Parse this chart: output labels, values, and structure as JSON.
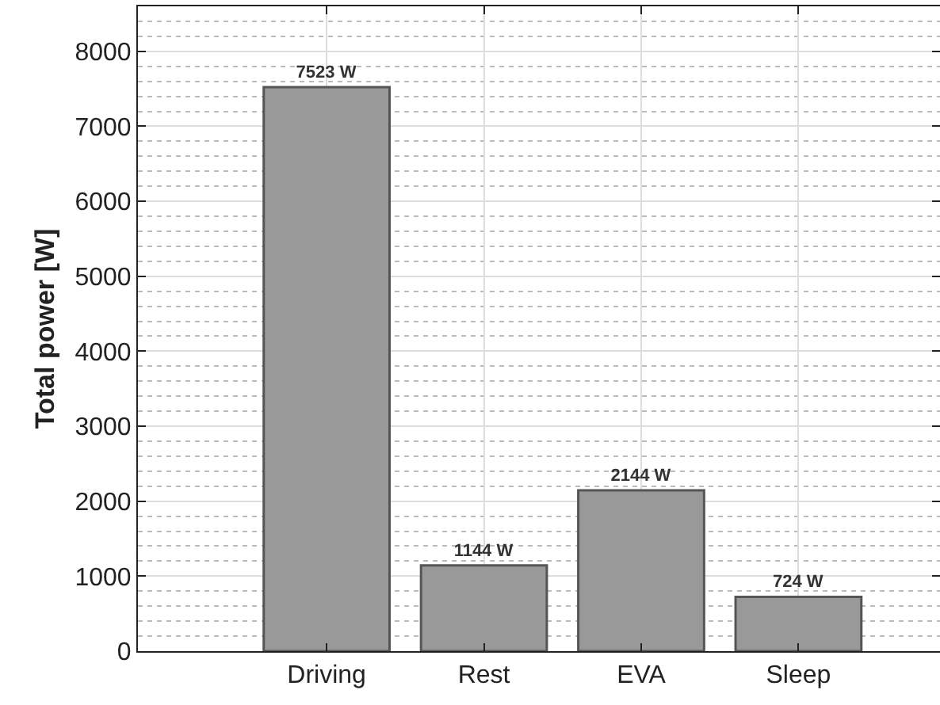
{
  "chart_data": {
    "type": "bar",
    "ylabel": "Total power [W]",
    "categories": [
      "Driving",
      "Rest",
      "EVA",
      "Sleep"
    ],
    "values": [
      7523,
      1144,
      2144,
      724
    ],
    "value_labels": [
      "7523 W",
      "1144 W",
      "2144 W",
      "724 W"
    ],
    "color": "#999999",
    "ylim": [
      0,
      8600
    ],
    "yticks": [
      0,
      {
        "value": 200,
        "label": null
      },
      {
        "value": 400,
        "label": null
      },
      {
        "value": 600,
        "label": null
      },
      {
        "value": 800,
        "label": null
      },
      1000,
      {
        "value": 1200,
        "label": null
      },
      {
        "value": 1400,
        "label": null
      },
      {
        "value": 1600,
        "label": null
      },
      {
        "value": 1800,
        "label": null
      },
      2000,
      {
        "value": 2200,
        "label": null
      },
      {
        "value": 2400,
        "label": null
      },
      {
        "value": 2600,
        "label": null
      },
      {
        "value": 2800,
        "label": null
      },
      3000,
      {
        "value": 3200,
        "label": null
      },
      {
        "value": 3400,
        "label": null
      },
      {
        "value": 3600,
        "label": null
      },
      {
        "value": 3800,
        "label": null
      },
      4000,
      {
        "value": 4200,
        "label": null
      },
      {
        "value": 4400,
        "label": null
      },
      {
        "value": 4600,
        "label": null
      },
      {
        "value": 4800,
        "label": null
      },
      5000,
      {
        "value": 5200,
        "label": null
      },
      {
        "value": 5400,
        "label": null
      },
      {
        "value": 5600,
        "label": null
      },
      {
        "value": 5800,
        "label": null
      },
      6000,
      {
        "value": 6200,
        "label": null
      },
      {
        "value": 6400,
        "label": null
      },
      {
        "value": 6600,
        "label": null
      },
      {
        "value": 6800,
        "label": null
      },
      7000,
      {
        "value": 7200,
        "label": null
      },
      {
        "value": 7400,
        "label": null
      },
      {
        "value": 7600,
        "label": null
      },
      {
        "value": 7800,
        "label": null
      },
      8000,
      {
        "value": 8200,
        "label": null
      },
      {
        "value": 8400,
        "label": null
      }
    ],
    "grid": true
  }
}
